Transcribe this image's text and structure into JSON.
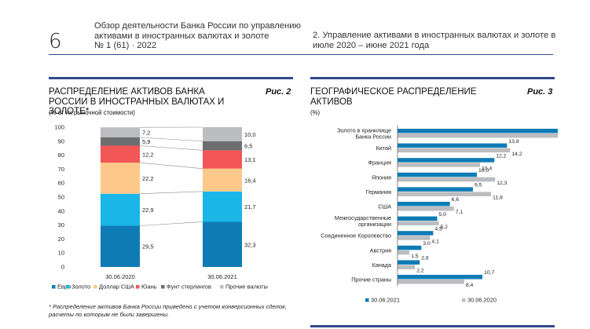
{
  "header": {
    "page_number": "6",
    "publication_title": "Обзор деятельности Банка России по управлению активами в иностранных валютах и золоте",
    "issue": "№ 1 (61) · 2022",
    "section": "2. Управление активами в иностранных валютах и золоте в июле 2020 – июне 2021 года"
  },
  "colors": {
    "accent_rule": "#2f4a8a",
    "euro": "#0f7bb5",
    "gold": "#1ab6e8",
    "usd": "#fcc98a",
    "yuan": "#f25656",
    "gbp": "#6d6e70",
    "other": "#bcbdc0",
    "bar_2021": "#0f7bb5",
    "bar_2020": "#bcbdc0"
  },
  "figure2": {
    "title": "Распределение активов Банка России в иностранных валютах и золоте*",
    "subtitle": "(% от их рыночной стоимости)",
    "label": "Рис. 2",
    "footnote": "* Распределение активов Банка России приведено с учетом конверсионных сделок, расчеты по которым не были завершены."
  },
  "figure3": {
    "title": "Географическое распределение активов",
    "subtitle": "(%)",
    "label": "Рис. 3"
  },
  "chart_data": [
    {
      "type": "bar",
      "stacked": true,
      "title": "Распределение активов Банка России в иностранных валютах и золоте*",
      "ylabel": "% от их рыночной стоимости",
      "ylim": [
        0,
        100
      ],
      "yticks": [
        0,
        10,
        20,
        30,
        40,
        50,
        60,
        70,
        80,
        90,
        100
      ],
      "categories": [
        "30.06.2020",
        "30.06.2021"
      ],
      "series": [
        {
          "name": "Евро",
          "values": [
            29.5,
            32.3
          ]
        },
        {
          "name": "Золото",
          "values": [
            22.9,
            21.7
          ]
        },
        {
          "name": "Доллар США",
          "values": [
            22.2,
            16.4
          ]
        },
        {
          "name": "Юань",
          "values": [
            12.2,
            13.1
          ]
        },
        {
          "name": "Фунт стерлингов",
          "values": [
            5.9,
            6.5
          ]
        },
        {
          "name": "Прочие валюты",
          "values": [
            7.2,
            10.0
          ]
        }
      ],
      "value_labels": [
        [
          "29,5",
          "22,9",
          "22,2",
          "12,2",
          "5,9",
          "7,2"
        ],
        [
          "32,3",
          "21,7",
          "16,4",
          "13,1",
          "6,5",
          "10,0"
        ]
      ],
      "legend": "bottom"
    },
    {
      "type": "bar",
      "orientation": "horizontal",
      "title": "Географическое распределение активов",
      "ylabel": "%",
      "categories": [
        "Золото в хранилище Банка России",
        "Китай",
        "Франция",
        "Япония",
        "Германия",
        "США",
        "Межгосударственные организации",
        "Соединенное Королевство",
        "Австрия",
        "Канада",
        "Прочие страны"
      ],
      "category_lines": [
        [
          "Золото в хранилище",
          "Банка России"
        ],
        [
          "Китай"
        ],
        [
          "Франция"
        ],
        [
          "Япония"
        ],
        [
          "Германия"
        ],
        [
          "США"
        ],
        [
          "Межгосударственные",
          "организации"
        ],
        [
          "Соединенное Королевство"
        ],
        [
          "Австрия"
        ],
        [
          "Канада"
        ],
        [
          "Прочие страны"
        ]
      ],
      "series": [
        {
          "name": "30.06.2021",
          "values": [
            21.7,
            13.8,
            12.2,
            10.0,
            9.5,
            6.6,
            5.0,
            4.5,
            3.0,
            2.8,
            10.7
          ],
          "labels": [
            "21,7",
            "13,8",
            "12,2",
            "10,0",
            "9,5",
            "6,6",
            "5,0",
            "4,5",
            "3,0",
            "2,8",
            "10,7"
          ]
        },
        {
          "name": "30.06.2020",
          "values": [
            22.9,
            14.2,
            10.4,
            12.3,
            11.8,
            7.1,
            5.2,
            4.1,
            1.5,
            2.2,
            8.4
          ],
          "labels": [
            "22,9",
            "14,2",
            "10,4",
            "12,3",
            "11,8",
            "7,1",
            "5,2",
            "4,1",
            "1,5",
            "2,2",
            "8,4"
          ]
        }
      ],
      "xlim": [
        0,
        25
      ],
      "legend": "bottom"
    }
  ]
}
